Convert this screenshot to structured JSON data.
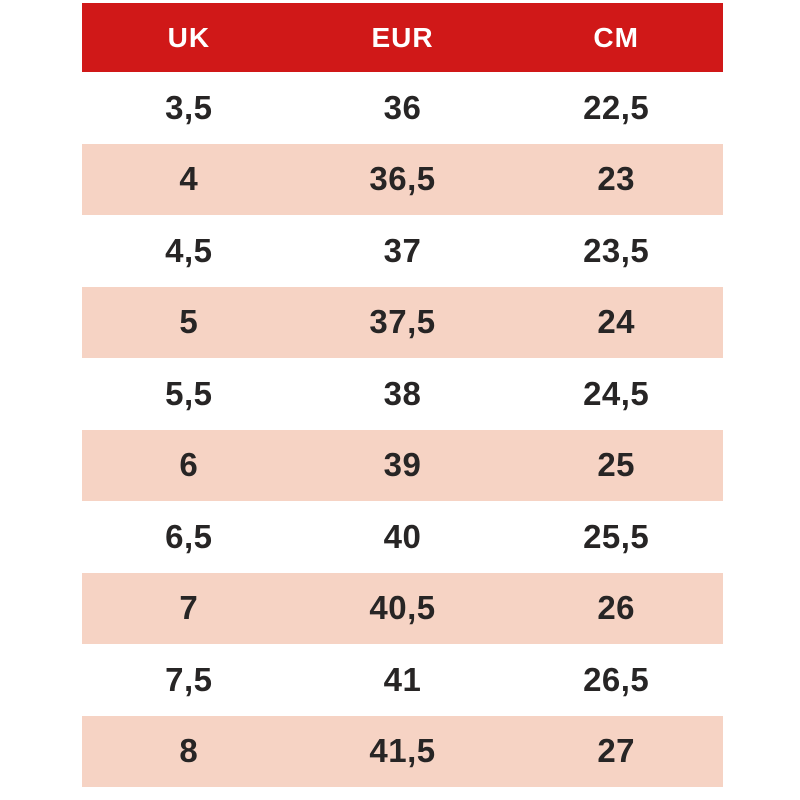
{
  "chart_data": {
    "type": "table",
    "columns": [
      "UK",
      "EUR",
      "CM"
    ],
    "rows": [
      [
        "3,5",
        "36",
        "22,5"
      ],
      [
        "4",
        "36,5",
        "23"
      ],
      [
        "4,5",
        "37",
        "23,5"
      ],
      [
        "5",
        "37,5",
        "24"
      ],
      [
        "5,5",
        "38",
        "24,5"
      ],
      [
        "6",
        "39",
        "25"
      ],
      [
        "6,5",
        "40",
        "25,5"
      ],
      [
        "7",
        "40,5",
        "26"
      ],
      [
        "7,5",
        "41",
        "26,5"
      ],
      [
        "8",
        "41,5",
        "27"
      ]
    ],
    "layout": {
      "row_striping": "white-pink-alternating",
      "header_position": "top"
    },
    "colors": {
      "header_bg": "#d01818",
      "header_text": "#ffffff",
      "row_bg": "#ffffff",
      "row_alt_bg": "#f6d3c4",
      "cell_text": "#272525"
    }
  }
}
